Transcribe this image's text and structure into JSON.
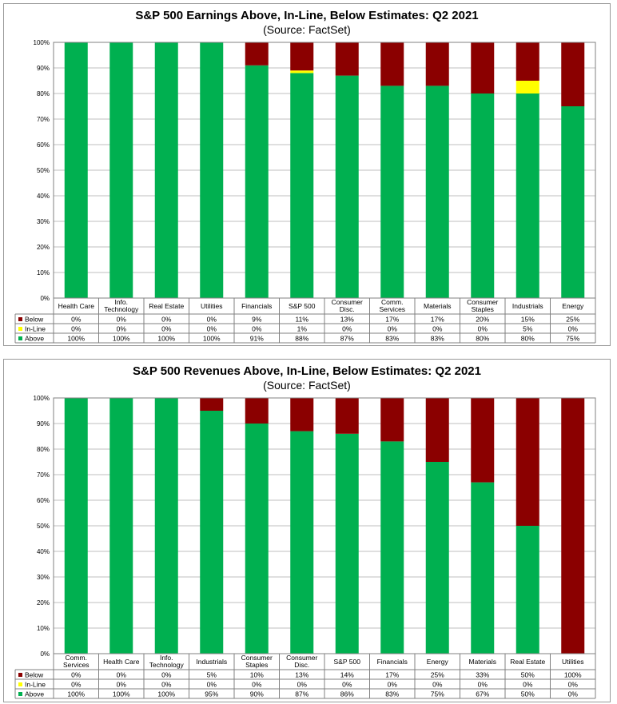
{
  "chart_data": [
    {
      "type": "bar",
      "stacked": true,
      "title": "S&P 500 Earnings Above, In-Line, Below Estimates: Q2 2021",
      "subtitle": "(Source: FactSet)",
      "ylim": [
        0,
        100
      ],
      "yticks": [
        "0%",
        "10%",
        "20%",
        "30%",
        "40%",
        "50%",
        "60%",
        "70%",
        "80%",
        "90%",
        "100%"
      ],
      "categories": [
        [
          "Health Care"
        ],
        [
          "Info.",
          "Technology"
        ],
        [
          "Real Estate"
        ],
        [
          "Utilities"
        ],
        [
          "Financials"
        ],
        [
          "S&P 500"
        ],
        [
          "Consumer",
          "Disc."
        ],
        [
          "Comm.",
          "Services"
        ],
        [
          "Materials"
        ],
        [
          "Consumer",
          "Staples"
        ],
        [
          "Industrials"
        ],
        [
          "Energy"
        ]
      ],
      "series": [
        {
          "name": "Below",
          "color": "#8b0000",
          "values": [
            0,
            0,
            0,
            0,
            9,
            11,
            13,
            17,
            17,
            20,
            15,
            25
          ]
        },
        {
          "name": "In-Line",
          "color": "#ffff00",
          "values": [
            0,
            0,
            0,
            0,
            0,
            1,
            0,
            0,
            0,
            0,
            5,
            0
          ]
        },
        {
          "name": "Above",
          "color": "#00b050",
          "values": [
            100,
            100,
            100,
            100,
            91,
            88,
            87,
            83,
            83,
            80,
            80,
            75
          ]
        }
      ]
    },
    {
      "type": "bar",
      "stacked": true,
      "title": "S&P 500 Revenues Above, In-Line, Below Estimates: Q2 2021",
      "subtitle": "(Source: FactSet)",
      "ylim": [
        0,
        100
      ],
      "yticks": [
        "0%",
        "10%",
        "20%",
        "30%",
        "40%",
        "50%",
        "60%",
        "70%",
        "80%",
        "90%",
        "100%"
      ],
      "categories": [
        [
          "Comm.",
          "Services"
        ],
        [
          "Health Care"
        ],
        [
          "Info.",
          "Technology"
        ],
        [
          "Industrials"
        ],
        [
          "Consumer",
          "Staples"
        ],
        [
          "Consumer",
          "Disc."
        ],
        [
          "S&P 500"
        ],
        [
          "Financials"
        ],
        [
          "Energy"
        ],
        [
          "Materials"
        ],
        [
          "Real Estate"
        ],
        [
          "Utilities"
        ]
      ],
      "series": [
        {
          "name": "Below",
          "color": "#8b0000",
          "values": [
            0,
            0,
            0,
            5,
            10,
            13,
            14,
            17,
            25,
            33,
            50,
            100
          ]
        },
        {
          "name": "In-Line",
          "color": "#ffff00",
          "values": [
            0,
            0,
            0,
            0,
            0,
            0,
            0,
            0,
            0,
            0,
            0,
            0
          ]
        },
        {
          "name": "Above",
          "color": "#00b050",
          "values": [
            100,
            100,
            100,
            95,
            90,
            87,
            86,
            83,
            75,
            67,
            50,
            0
          ]
        }
      ]
    }
  ]
}
